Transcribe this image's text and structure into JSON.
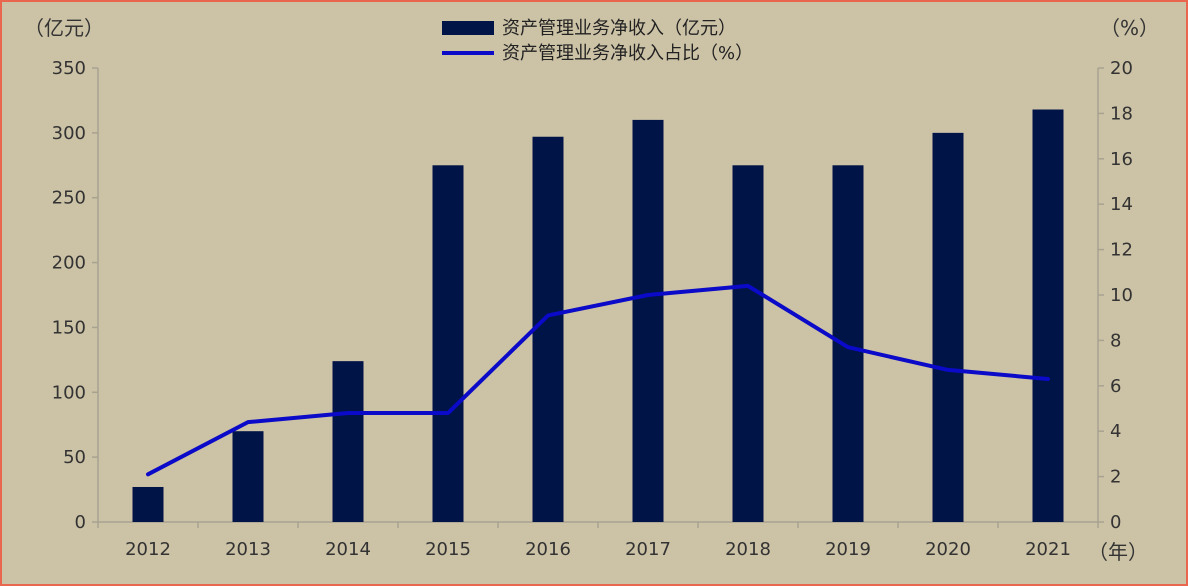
{
  "chart_data": {
    "type": "bar",
    "title": "",
    "categories": [
      "2012",
      "2013",
      "2014",
      "2015",
      "2016",
      "2017",
      "2018",
      "2019",
      "2020",
      "2021"
    ],
    "series": [
      {
        "name": "资产管理业务净收入（亿元）",
        "type": "bar",
        "axis": "left",
        "color": "#001448",
        "values": [
          27,
          70,
          124,
          275,
          297,
          310,
          275,
          275,
          300,
          318
        ]
      },
      {
        "name": "资产管理业务净收入占比（%）",
        "type": "line",
        "axis": "right",
        "color": "#0A0AC8",
        "values": [
          2.1,
          4.4,
          4.8,
          4.8,
          9.1,
          10.0,
          10.4,
          7.7,
          6.7,
          6.3
        ]
      }
    ],
    "y_left": {
      "label": "（亿元）",
      "ylim": [
        0,
        350
      ],
      "ticks": [
        0,
        50,
        100,
        150,
        200,
        250,
        300,
        350
      ]
    },
    "y_right": {
      "label": "（%）",
      "ylim": [
        0,
        20
      ],
      "ticks": [
        0,
        2,
        4,
        6,
        8,
        10,
        12,
        14,
        16,
        18,
        20
      ]
    },
    "x_unit": "（年）",
    "legend_position": "top-center",
    "grid": false
  }
}
